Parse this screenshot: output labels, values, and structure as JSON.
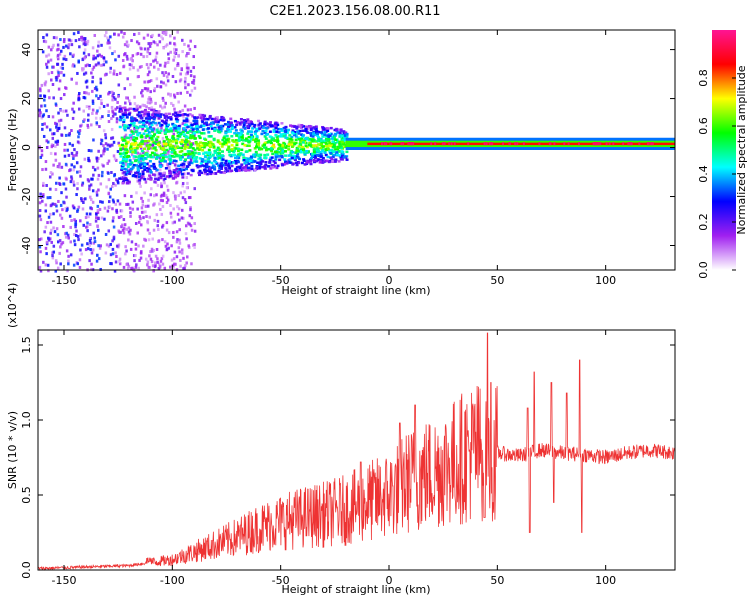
{
  "title": "C2E1.2023.156.08.00.R11",
  "chart_data": [
    {
      "type": "heatmap",
      "xlabel": "Height of straight line (km)",
      "ylabel": "Frequency (Hz)",
      "xlim": [
        -162,
        132
      ],
      "ylim": [
        -50,
        48
      ],
      "x_ticks": [
        -150,
        -100,
        -50,
        0,
        50,
        100
      ],
      "y_ticks": [
        -40,
        -20,
        0,
        20,
        40
      ],
      "colorbar": {
        "label": "Normalized spectral amplitude",
        "range": [
          0.0,
          1.0
        ],
        "ticks": [
          "0.0",
          "0.2",
          "0.4",
          "0.6",
          "0.8"
        ],
        "colors": [
          "#ffffff",
          "#a020f0",
          "#0000ff",
          "#00ffff",
          "#00ff00",
          "#ffff00",
          "#ff0000",
          "#ff1493"
        ]
      },
      "features": {
        "dominant_band_frequency_hz": 1.5,
        "noise_region_x": [
          -162,
          -90
        ],
        "spread_region_x": [
          -125,
          -20
        ],
        "narrow_band_region_x": [
          -20,
          132
        ]
      }
    },
    {
      "type": "line",
      "xlabel": "Height of straight line (km)",
      "ylabel": "SNR (10 * v/v)",
      "y_multiplier": "(x10^4)",
      "xlim": [
        -162,
        132
      ],
      "ylim": [
        0.0,
        1.6
      ],
      "x_ticks": [
        -150,
        -100,
        -50,
        0,
        50,
        100
      ],
      "y_ticks": [
        "0.0",
        "0.5",
        "1.0",
        "1.5"
      ],
      "series_color": "#ee3333",
      "envelope_x": [
        -162,
        -140,
        -120,
        -110,
        -100,
        -90,
        -80,
        -70,
        -60,
        -50,
        -40,
        -30,
        -20,
        -10,
        0,
        10,
        20,
        30,
        40,
        50,
        60,
        70,
        80,
        90,
        100,
        110,
        120,
        132
      ],
      "envelope_y": [
        0.01,
        0.02,
        0.03,
        0.05,
        0.07,
        0.12,
        0.17,
        0.22,
        0.28,
        0.32,
        0.35,
        0.37,
        0.4,
        0.45,
        0.5,
        0.6,
        0.65,
        0.72,
        0.8,
        0.78,
        0.76,
        0.8,
        0.78,
        0.77,
        0.75,
        0.78,
        0.8,
        0.78
      ],
      "spikes": [
        {
          "x": 45.5,
          "y": 1.58
        },
        {
          "x": 47,
          "y": 1.25
        },
        {
          "x": 44,
          "y": 0.35
        },
        {
          "x": 48,
          "y": 0.45
        },
        {
          "x": 64,
          "y": 1.08
        },
        {
          "x": 65,
          "y": 0.25
        },
        {
          "x": 67,
          "y": 1.32
        },
        {
          "x": 75,
          "y": 1.25
        },
        {
          "x": 76,
          "y": 0.45
        },
        {
          "x": 82,
          "y": 1.18
        },
        {
          "x": 88,
          "y": 1.4
        },
        {
          "x": 89,
          "y": 0.25
        },
        {
          "x": -13,
          "y": 0.72
        },
        {
          "x": 5,
          "y": 0.98
        },
        {
          "x": 12,
          "y": 1.1
        }
      ]
    }
  ]
}
